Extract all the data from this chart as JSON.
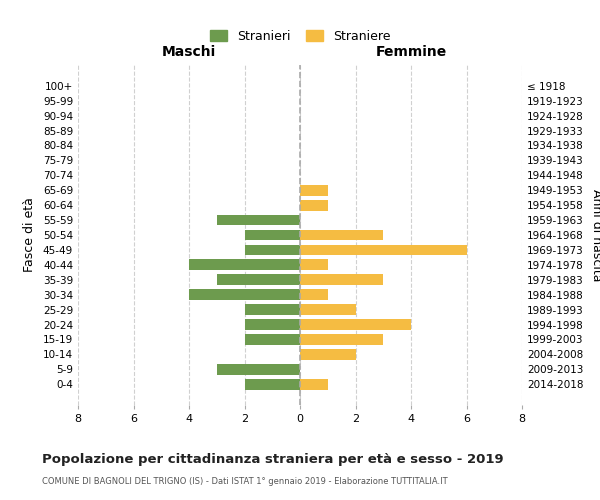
{
  "age_groups": [
    "0-4",
    "5-9",
    "10-14",
    "15-19",
    "20-24",
    "25-29",
    "30-34",
    "35-39",
    "40-44",
    "45-49",
    "50-54",
    "55-59",
    "60-64",
    "65-69",
    "70-74",
    "75-79",
    "80-84",
    "85-89",
    "90-94",
    "95-99",
    "100+"
  ],
  "birth_years": [
    "2014-2018",
    "2009-2013",
    "2004-2008",
    "1999-2003",
    "1994-1998",
    "1989-1993",
    "1984-1988",
    "1979-1983",
    "1974-1978",
    "1969-1973",
    "1964-1968",
    "1959-1963",
    "1954-1958",
    "1949-1953",
    "1944-1948",
    "1939-1943",
    "1934-1938",
    "1929-1933",
    "1924-1928",
    "1919-1923",
    "≤ 1918"
  ],
  "maschi": [
    2,
    3,
    0,
    2,
    2,
    2,
    4,
    3,
    4,
    2,
    2,
    3,
    0,
    0,
    0,
    0,
    0,
    0,
    0,
    0,
    0
  ],
  "femmine": [
    1,
    0,
    2,
    3,
    4,
    2,
    1,
    3,
    1,
    6,
    3,
    0,
    1,
    1,
    0,
    0,
    0,
    0,
    0,
    0,
    0
  ],
  "color_maschi": "#6d9b4e",
  "color_femmine": "#f5bc42",
  "title": "Popolazione per cittadinanza straniera per età e sesso - 2019",
  "subtitle": "COMUNE DI BAGNOLI DEL TRIGNO (IS) - Dati ISTAT 1° gennaio 2019 - Elaborazione TUTTITALIA.IT",
  "ylabel_left": "Fasce di età",
  "ylabel_right": "Anni di nascita",
  "xlabel_left": "Maschi",
  "xlabel_right": "Femmine",
  "legend_maschi": "Stranieri",
  "legend_femmine": "Straniere",
  "xlim": 8,
  "background_color": "#ffffff",
  "grid_color": "#d0d0d0",
  "dashed_line_color": "#aaaaaa"
}
